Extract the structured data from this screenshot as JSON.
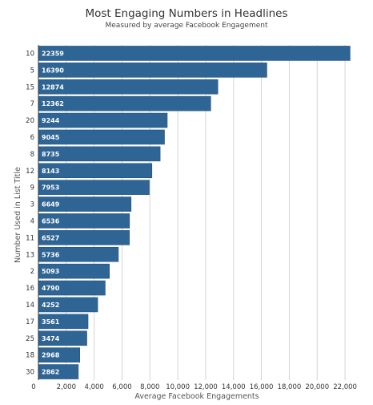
{
  "chart_data": {
    "type": "bar",
    "orientation": "horizontal",
    "title": "Most Engaging Numbers in Headlines",
    "subtitle": "Measured by average Facebook Engagement",
    "xlabel": "Average Facebook Engagements",
    "ylabel": "Number Used in List Title",
    "categories": [
      "10",
      "5",
      "15",
      "7",
      "20",
      "6",
      "8",
      "12",
      "9",
      "3",
      "4",
      "11",
      "13",
      "2",
      "16",
      "14",
      "17",
      "25",
      "18",
      "30"
    ],
    "values": [
      22359,
      16390,
      12874,
      12362,
      9244,
      9045,
      8735,
      8143,
      7953,
      6649,
      6536,
      6527,
      5736,
      5093,
      4790,
      4252,
      3561,
      3474,
      2968,
      2862
    ],
    "value_labels": [
      "22359",
      "16390",
      "12874",
      "12362",
      "9244",
      "9045",
      "8735",
      "8143",
      "7953",
      "6649",
      "6536",
      "6527",
      "5736",
      "5093",
      "4790",
      "4252",
      "3561",
      "3474",
      "2968",
      "2862"
    ],
    "xlim": [
      0,
      22800
    ],
    "xticks": [
      0,
      2000,
      4000,
      6000,
      8000,
      10000,
      12000,
      14000,
      16000,
      18000,
      20000,
      22000
    ],
    "xtick_labels": [
      "0",
      "2,000",
      "4,000",
      "6,000",
      "8,000",
      "10,000",
      "12,000",
      "14,000",
      "16,000",
      "18,000",
      "20,000",
      "22,000"
    ],
    "grid": true,
    "legend": "none",
    "colors": {
      "bar": "#2e6595",
      "bar_stroke": "#24507a",
      "grid": "#d4d4d4",
      "text": "#333333"
    }
  }
}
